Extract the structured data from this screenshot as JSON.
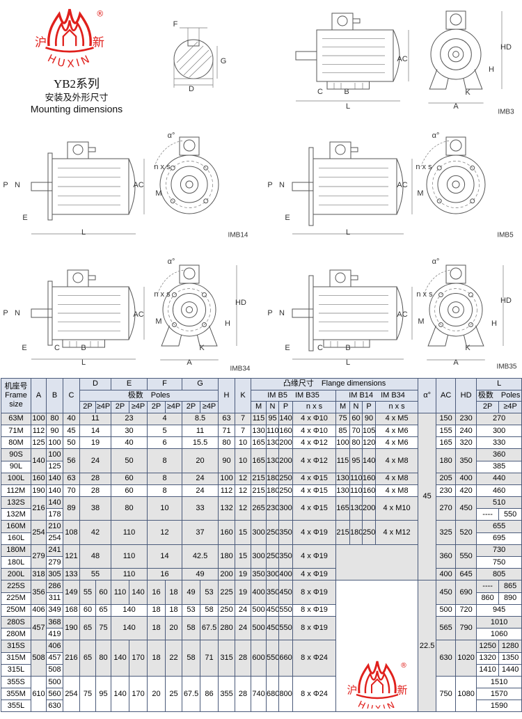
{
  "logo": {
    "left": "沪",
    "right": "新",
    "name": "HUXIN",
    "mark": "®"
  },
  "header": {
    "series": "YB2系列",
    "title_cn": "安装及外形尺寸",
    "title_en": "Mounting dimensions"
  },
  "drawings": {
    "shaft": [
      "F",
      "G",
      "D"
    ],
    "imb3": {
      "labels": [
        "C",
        "B",
        "L",
        "AC",
        "HD",
        "H",
        "K",
        "A"
      ],
      "caption": "IMB3"
    },
    "imb14": {
      "labels": [
        "P",
        "N",
        "AC",
        "E",
        "L",
        "α°",
        "n x s",
        "M"
      ],
      "caption": "IMB14"
    },
    "imb5": {
      "labels": [
        "P",
        "N",
        "AC",
        "E",
        "L",
        "α°",
        "n x s",
        "M"
      ],
      "caption": "IMB5"
    },
    "imb34": {
      "labels": [
        "P",
        "N",
        "AC",
        "E",
        "C",
        "B",
        "L",
        "α°",
        "n x s",
        "M",
        "HD",
        "H",
        "K",
        "A"
      ],
      "caption": "IMB34"
    },
    "imb35": {
      "labels": [
        "P",
        "N",
        "AC",
        "E",
        "C",
        "B",
        "L",
        "α°",
        "n x s",
        "M",
        "HD",
        "H",
        "K",
        "A"
      ],
      "caption": "IMB35"
    }
  },
  "table": {
    "header": {
      "frame": [
        "机座号",
        "Frame",
        "size"
      ],
      "dims": [
        "A",
        "B",
        "C",
        "D",
        "E",
        "F",
        "G",
        "H",
        "K"
      ],
      "flange": "凸缘尺寸　Flange dimensions",
      "alpha": "α°",
      "ac": "AC",
      "hd": "HD",
      "l": "L",
      "poles": "极数　Poles",
      "poles_sub": [
        "2P",
        "≥4P"
      ],
      "b5": "IM B5　IM B35",
      "b14": "IM B14　IM B34",
      "flange_sub": [
        "M",
        "N",
        "P",
        "n x s"
      ]
    },
    "rows": [
      [
        "63M",
        100,
        80,
        40,
        11,
        23,
        4,
        8.5,
        63,
        7,
        115,
        95,
        140,
        "4 x Φ10",
        75,
        60,
        90,
        "4 x M5",
        45,
        150,
        230,
        270
      ],
      [
        "71M",
        112,
        90,
        45,
        14,
        30,
        5,
        11,
        71,
        7,
        130,
        110,
        160,
        "4 x Φ10",
        85,
        70,
        105,
        "4 x M6",
        155,
        240,
        300
      ],
      [
        "80M",
        125,
        100,
        50,
        19,
        40,
        6,
        15.5,
        80,
        10,
        165,
        130,
        200,
        "4 x Φ12",
        100,
        80,
        120,
        "4 x M6",
        165,
        320,
        330
      ],
      [
        "90S",
        140,
        100,
        56,
        24,
        50,
        8,
        20,
        90,
        10,
        165,
        130,
        200,
        "4 x Φ12",
        115,
        95,
        140,
        "4 x M8",
        180,
        350,
        360
      ],
      [
        "90L",
        125,
        385
      ],
      [
        "100L",
        160,
        140,
        63,
        28,
        60,
        8,
        24,
        100,
        12,
        215,
        180,
        250,
        "4 x Φ15",
        130,
        110,
        160,
        "4 x M8",
        205,
        400,
        440
      ],
      [
        "112M",
        190,
        140,
        70,
        28,
        60,
        8,
        24,
        112,
        12,
        215,
        180,
        250,
        "4 x Φ15",
        130,
        110,
        160,
        "4 x M8",
        230,
        420,
        460
      ],
      [
        "132S",
        216,
        140,
        89,
        38,
        80,
        10,
        33,
        132,
        12,
        265,
        230,
        300,
        "4 x Φ15",
        165,
        130,
        200,
        "4 x M10",
        270,
        450,
        510
      ],
      [
        "132M",
        178,
        "----",
        550
      ],
      [
        "160M",
        254,
        210,
        108,
        42,
        110,
        12,
        37,
        160,
        15,
        300,
        250,
        350,
        "4 x Φ19",
        215,
        180,
        250,
        "4 x M12",
        325,
        520,
        655
      ],
      [
        "160L",
        254,
        695
      ],
      [
        "180M",
        279,
        241,
        121,
        48,
        110,
        14,
        42.5,
        180,
        15,
        300,
        250,
        350,
        "4 x Φ19",
        360,
        550,
        730
      ],
      [
        "180L",
        279,
        750
      ],
      [
        "200L",
        318,
        305,
        133,
        55,
        110,
        16,
        49,
        200,
        19,
        350,
        300,
        400,
        "4 x Φ19",
        400,
        645,
        805
      ],
      [
        "225S",
        356,
        286,
        149,
        55,
        60,
        110,
        140,
        16,
        18,
        49,
        53,
        225,
        19,
        400,
        350,
        450,
        "8 x Φ19",
        22.5,
        450,
        690,
        "----",
        865
      ],
      [
        "225M",
        311,
        860,
        890
      ],
      [
        "250M",
        406,
        349,
        168,
        60,
        65,
        140,
        18,
        18,
        53,
        58,
        250,
        24,
        500,
        450,
        550,
        "8 x Φ19",
        500,
        720,
        945
      ],
      [
        "280S",
        457,
        368,
        190,
        65,
        75,
        140,
        18,
        20,
        58,
        67.5,
        280,
        24,
        500,
        450,
        550,
        "8 x Φ19",
        565,
        790,
        1010
      ],
      [
        "280M",
        419,
        1060
      ],
      [
        "315S",
        508,
        406,
        216,
        65,
        80,
        140,
        170,
        18,
        22,
        58,
        71,
        315,
        28,
        600,
        550,
        660,
        "8 x Φ24",
        630,
        1020,
        1250,
        1280
      ],
      [
        "315M",
        457,
        1320,
        1350
      ],
      [
        "315L",
        508,
        1410,
        1440
      ],
      [
        "355S",
        610,
        500,
        254,
        75,
        95,
        140,
        170,
        20,
        25,
        67.5,
        86,
        355,
        28,
        740,
        680,
        800,
        "8 x Φ24",
        750,
        1080,
        1510
      ],
      [
        "355M",
        560,
        1570
      ],
      [
        "355L",
        630,
        1590
      ]
    ]
  }
}
